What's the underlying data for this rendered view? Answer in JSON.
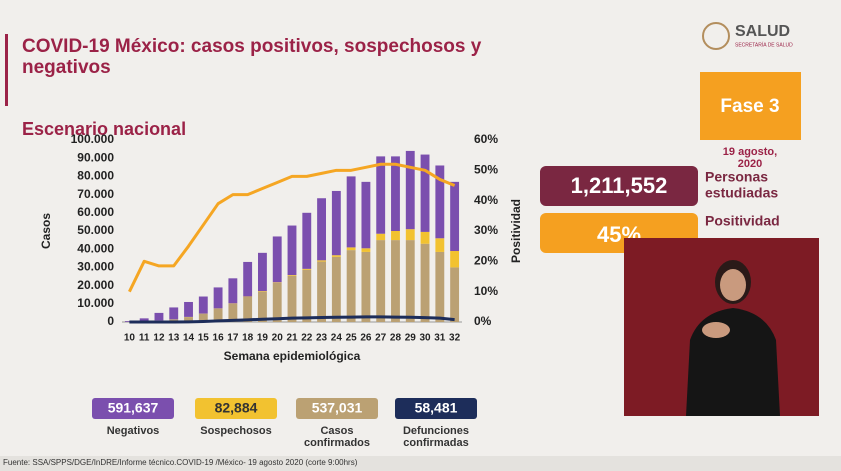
{
  "chart_data": {
    "type": "bar",
    "stacked": true,
    "y_label": "Casos",
    "y2_label": "Positividad",
    "x_label": "Semana epidemiológica",
    "categories": [
      "10",
      "11",
      "12",
      "13",
      "14",
      "15",
      "16",
      "17",
      "18",
      "19",
      "20",
      "21",
      "22",
      "23",
      "24",
      "25",
      "26",
      "27",
      "28",
      "29",
      "30",
      "31",
      "32"
    ],
    "series": [
      {
        "name": "Negativos",
        "type": "bar",
        "color": "#7b4fae",
        "values": [
          450,
          1600,
          4100,
          6500,
          8200,
          9400,
          11500,
          13800,
          19000,
          21000,
          25200,
          27200,
          30800,
          34100,
          35300,
          39000,
          36500,
          42500,
          41000,
          43000,
          42500,
          40000,
          38000
        ]
      },
      {
        "name": "Sospechosos",
        "type": "bar",
        "color": "#f2c230",
        "values": [
          0,
          0,
          0,
          0,
          100,
          100,
          100,
          200,
          200,
          300,
          300,
          400,
          500,
          700,
          900,
          1500,
          2000,
          3500,
          5000,
          6000,
          6500,
          7500,
          9000
        ]
      },
      {
        "name": "Casos confirmados",
        "type": "bar",
        "color": "#bba173",
        "values": [
          50,
          400,
          900,
          1500,
          2700,
          4500,
          7400,
          10000,
          13800,
          16700,
          21500,
          25400,
          28700,
          33200,
          35800,
          39500,
          38500,
          45000,
          45000,
          45000,
          43000,
          38500,
          30000
        ]
      },
      {
        "name": "Defunciones confirmadas",
        "type": "line",
        "color": "#1d2d5a",
        "values": [
          0,
          0,
          0,
          0,
          100,
          300,
          600,
          900,
          1200,
          1500,
          1800,
          2100,
          2300,
          2500,
          2600,
          2700,
          2800,
          2800,
          2700,
          2600,
          2400,
          2100,
          1300
        ]
      },
      {
        "type": "line",
        "axis": "y2",
        "color": "#f5a623",
        "values": [
          10,
          20,
          18.5,
          18.5,
          25,
          32,
          39,
          42,
          42,
          44,
          46,
          48,
          48,
          49,
          50,
          50,
          51,
          52,
          52,
          51,
          50,
          47,
          45
        ]
      }
    ],
    "ylim": [
      0,
      100000
    ],
    "yticks": [
      0,
      {
        "value": 10000,
        "label": "10.000"
      },
      {
        "value": 20000,
        "label": "20.000"
      },
      {
        "value": 30000,
        "label": "30.000"
      },
      {
        "value": 40000,
        "label": "40.000"
      },
      {
        "value": 50000,
        "label": "50.000"
      },
      {
        "value": 60000,
        "label": "60.000"
      },
      {
        "value": 70000,
        "label": "70.000"
      },
      {
        "value": 80000,
        "label": "80.000"
      },
      {
        "value": 90000,
        "label": "90.000"
      },
      {
        "value": 100000,
        "label": "100.000"
      }
    ],
    "y2lim": [
      0,
      60
    ],
    "y2ticks": [
      {
        "value": 0,
        "label": "0%"
      },
      {
        "value": 10,
        "label": "10%"
      },
      {
        "value": 20,
        "label": "20%"
      },
      {
        "value": 30,
        "label": "30%"
      },
      {
        "value": 40,
        "label": "40%"
      },
      {
        "value": 50,
        "label": "50%"
      },
      {
        "value": 60,
        "label": "60%"
      }
    ],
    "grid": false
  },
  "header": {
    "title_line1": "COVID-19 México: casos positivos, sospechosos y",
    "title_line2": "negativos",
    "subtitle": "Escenario nacional",
    "logo": "SALUD",
    "logo_sub": "SECRETARÍA DE SALUD"
  },
  "panel": {
    "phase": "Fase 3",
    "date_line1": "19 agosto,",
    "date_line2": "2020",
    "people": "1,211,552",
    "people_label1": "Personas",
    "people_label2": "estudiadas",
    "positivity": "45%",
    "positivity_label": "Positividad"
  },
  "totals": [
    "591,637",
    "82,884",
    "537,031",
    "58,481"
  ],
  "footer": "Fuente: SSA/SPPS/DGE/InDRE/Informe técnico.COVID-19 /México- 19 agosto 2020 (corte 9:00hrs)"
}
